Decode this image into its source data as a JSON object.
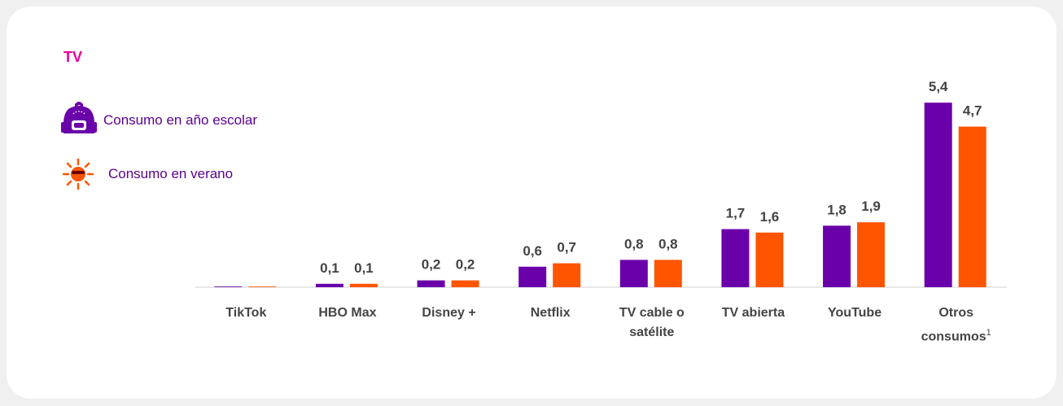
{
  "chart_data": {
    "type": "bar",
    "title": "TV",
    "categories": [
      "TikTok",
      "HBO Max",
      "Disney +",
      "Netflix",
      "TV cable o satélite",
      "TV abierta",
      "YouTube",
      "Otros consumos"
    ],
    "footnote_marker": "1",
    "series": [
      {
        "name": "Consumo en año escolar",
        "color": "#6a00aa",
        "values": [
          0.02,
          0.1,
          0.2,
          0.6,
          0.8,
          1.7,
          1.8,
          5.4
        ],
        "value_labels": [
          null,
          "0,1",
          "0,2",
          "0,6",
          "0,8",
          "1,7",
          "1,8",
          "5,4"
        ]
      },
      {
        "name": "Consumo en verano",
        "color": "#ff5500",
        "values": [
          0.02,
          0.1,
          0.2,
          0.7,
          0.8,
          1.6,
          1.9,
          4.7
        ],
        "value_labels": [
          null,
          "0,1",
          "0,2",
          "0,7",
          "0,8",
          "1,6",
          "1,9",
          "4,7"
        ]
      }
    ],
    "ylim": [
      0,
      6
    ]
  }
}
